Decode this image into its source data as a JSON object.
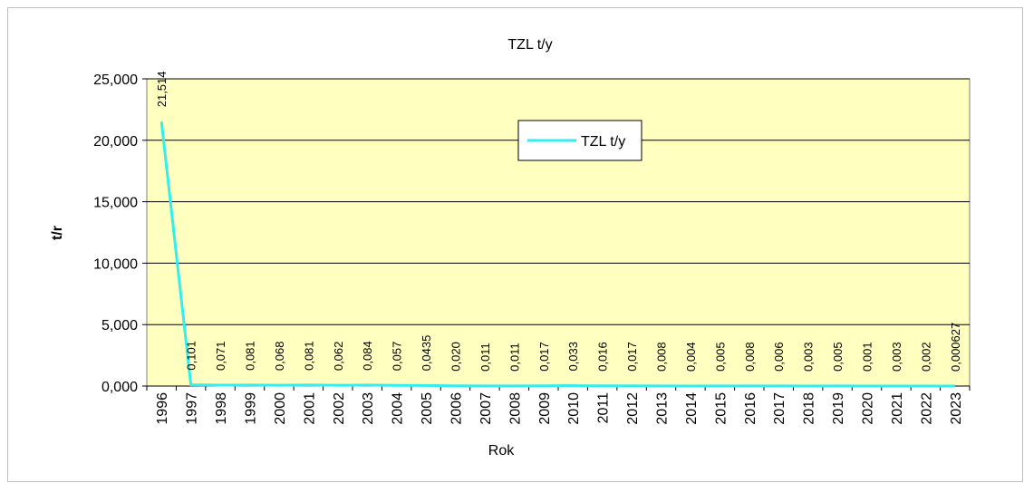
{
  "chart_data": {
    "type": "line",
    "title": "TZL t/y",
    "y_label": "t/r",
    "x_label": "Rok",
    "categories": [
      "1996",
      "1997",
      "1998",
      "1999",
      "2000",
      "2001",
      "2002",
      "2003",
      "2004",
      "2005",
      "2006",
      "2007",
      "2008",
      "2009",
      "2010",
      "2011",
      "2012",
      "2013",
      "2014",
      "2015",
      "2016",
      "2017",
      "2018",
      "2019",
      "2020",
      "2021",
      "2022",
      "2023"
    ],
    "series": [
      {
        "name": "TZL t/y",
        "color": "#33eeee",
        "values": [
          21.514,
          0.101,
          0.071,
          0.081,
          0.068,
          0.081,
          0.062,
          0.084,
          0.057,
          0.0435,
          0.02,
          0.011,
          0.011,
          0.017,
          0.033,
          0.016,
          0.017,
          0.008,
          0.004,
          0.005,
          0.008,
          0.006,
          0.003,
          0.005,
          0.001,
          0.003,
          0.002,
          0.000627
        ],
        "value_labels": [
          "21,514",
          "0,101",
          "0,071",
          "0,081",
          "0,068",
          "0,081",
          "0,062",
          "0,084",
          "0,057",
          "0,0435",
          "0,020",
          "0,011",
          "0,011",
          "0,017",
          "0,033",
          "0,016",
          "0,017",
          "0,008",
          "0,004",
          "0,005",
          "0,008",
          "0,006",
          "0,003",
          "0,005",
          "0,001",
          "0,003",
          "0,002",
          "0,000627"
        ]
      }
    ],
    "ylim": [
      0,
      25
    ],
    "yticks": [
      {
        "value": 0,
        "label": "0,000"
      },
      {
        "value": 5,
        "label": "5,000"
      },
      {
        "value": 10,
        "label": "10,000"
      },
      {
        "value": 15,
        "label": "15,000"
      },
      {
        "value": 20,
        "label": "20,000"
      },
      {
        "value": 25,
        "label": "25,000"
      }
    ],
    "grid": true,
    "plot_background": "#ffffc0"
  }
}
